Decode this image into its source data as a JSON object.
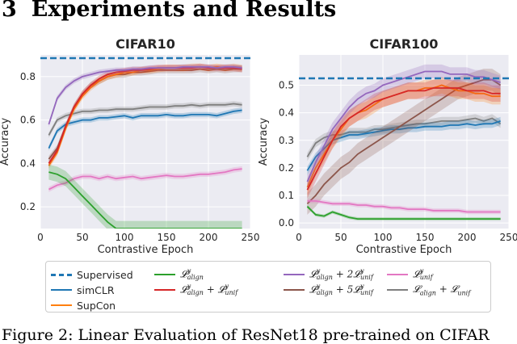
{
  "heading": {
    "number": "3",
    "title": "Experiments and Results"
  },
  "caption": "Figure 2: Linear Evaluation of ResNet18 pre-trained on CIFAR",
  "legend": [
    {
      "key": "supervised",
      "text": "Supervised",
      "color": "#1f77b4",
      "dashed": true,
      "math": false
    },
    {
      "key": "simclr",
      "text": "simCLR",
      "color": "#1f77b4",
      "math": false
    },
    {
      "key": "supcon",
      "text": "SupCon",
      "color": "#ff7f0e",
      "math": false
    },
    {
      "key": "align",
      "text": "𝓛",
      "sub": "align",
      "sup": "y",
      "color": "#2ca02c",
      "math": true
    },
    {
      "key": "align_unif",
      "text": "𝓛",
      "sub": "align",
      "sup": "y",
      "rest": " + 𝓛",
      "sub2": "unif",
      "sup2": "y",
      "color": "#d62728",
      "math": true
    },
    {
      "key": "align_2unif",
      "text": "𝓛",
      "sub": "align",
      "sup": "y",
      "rest": " + 2𝓛",
      "sub2": "unif",
      "sup2": "y",
      "color": "#9467bd",
      "math": true
    },
    {
      "key": "align_5unif",
      "text": "𝓛",
      "sub": "align",
      "sup": "y",
      "rest": " + 5𝓛",
      "sub2": "unif",
      "sup2": "y",
      "color": "#8c564b",
      "math": true
    },
    {
      "key": "unif",
      "text": "𝓛",
      "sub": "unif",
      "sup": "y",
      "color": "#e377c2",
      "math": true
    },
    {
      "key": "align_unif_ns",
      "text": "𝓛",
      "sub": "align",
      "rest": " + 𝓛",
      "sub2": "unif",
      "color": "#7f7f7f",
      "math": true
    }
  ],
  "chart_data": [
    {
      "type": "line",
      "title": "CIFAR10",
      "xlabel": "Contrastive Epoch",
      "ylabel": "Accuracy",
      "xlim": [
        0,
        250
      ],
      "ylim": [
        0.1,
        0.9
      ],
      "xticks": [
        0,
        50,
        100,
        150,
        200,
        250
      ],
      "yticks": [
        0.2,
        0.4,
        0.6,
        0.8
      ],
      "supervised": 0.885,
      "x": [
        10,
        20,
        30,
        40,
        50,
        60,
        70,
        80,
        90,
        100,
        110,
        120,
        130,
        140,
        150,
        160,
        170,
        180,
        190,
        200,
        210,
        220,
        230,
        240
      ],
      "series": [
        {
          "key": "simclr",
          "name": "simCLR",
          "band": 0.012,
          "values": [
            0.47,
            0.55,
            0.58,
            0.59,
            0.6,
            0.6,
            0.61,
            0.61,
            0.615,
            0.62,
            0.61,
            0.62,
            0.62,
            0.62,
            0.625,
            0.62,
            0.62,
            0.625,
            0.625,
            0.625,
            0.62,
            0.63,
            0.64,
            0.645
          ]
        },
        {
          "key": "align_unif_ns",
          "name": "L_align + L_unif",
          "band": 0.012,
          "values": [
            0.53,
            0.6,
            0.62,
            0.63,
            0.64,
            0.64,
            0.645,
            0.645,
            0.65,
            0.65,
            0.65,
            0.655,
            0.66,
            0.66,
            0.66,
            0.665,
            0.665,
            0.67,
            0.665,
            0.67,
            0.67,
            0.67,
            0.675,
            0.67
          ]
        },
        {
          "key": "align_5unif",
          "name": "L_align + 5 L_unif",
          "band": 0.015,
          "values": [
            0.42,
            0.47,
            0.57,
            0.66,
            0.72,
            0.76,
            0.78,
            0.8,
            0.81,
            0.81,
            0.82,
            0.82,
            0.825,
            0.83,
            0.83,
            0.83,
            0.83,
            0.83,
            0.835,
            0.83,
            0.835,
            0.83,
            0.835,
            0.835
          ]
        },
        {
          "key": "supcon",
          "name": "SupCon",
          "band": 0.015,
          "values": [
            0.39,
            0.45,
            0.56,
            0.65,
            0.71,
            0.75,
            0.78,
            0.8,
            0.81,
            0.82,
            0.82,
            0.83,
            0.83,
            0.835,
            0.84,
            0.84,
            0.84,
            0.845,
            0.845,
            0.84,
            0.845,
            0.84,
            0.845,
            0.84
          ]
        },
        {
          "key": "align_unif",
          "name": "L_align^y + L_unif^y",
          "band": 0.015,
          "values": [
            0.4,
            0.46,
            0.57,
            0.66,
            0.72,
            0.76,
            0.79,
            0.81,
            0.82,
            0.825,
            0.83,
            0.83,
            0.835,
            0.84,
            0.84,
            0.84,
            0.84,
            0.84,
            0.845,
            0.84,
            0.84,
            0.84,
            0.84,
            0.835
          ]
        },
        {
          "key": "align_2unif",
          "name": "L_align^y + 2 L_unif^y",
          "band": 0.012,
          "values": [
            0.58,
            0.7,
            0.75,
            0.78,
            0.8,
            0.81,
            0.82,
            0.825,
            0.83,
            0.83,
            0.835,
            0.835,
            0.84,
            0.84,
            0.84,
            0.84,
            0.845,
            0.845,
            0.845,
            0.845,
            0.84,
            0.845,
            0.845,
            0.84
          ]
        },
        {
          "key": "unif",
          "name": "L_unif^y",
          "band": 0.012,
          "values": [
            0.28,
            0.3,
            0.31,
            0.33,
            0.34,
            0.34,
            0.33,
            0.34,
            0.33,
            0.335,
            0.34,
            0.33,
            0.335,
            0.34,
            0.345,
            0.34,
            0.34,
            0.345,
            0.35,
            0.35,
            0.355,
            0.36,
            0.37,
            0.375
          ]
        },
        {
          "key": "align",
          "name": "L_align^y",
          "band": 0.035,
          "values": [
            0.36,
            0.35,
            0.33,
            0.29,
            0.25,
            0.21,
            0.17,
            0.13,
            0.1,
            0.1,
            0.1,
            0.1,
            0.1,
            0.1,
            0.1,
            0.1,
            0.1,
            0.1,
            0.1,
            0.1,
            0.1,
            0.1,
            0.1,
            0.1
          ]
        }
      ]
    },
    {
      "type": "line",
      "title": "CIFAR100",
      "xlabel": "Contrastive Epoch",
      "ylabel": "Accuracy",
      "xlim": [
        0,
        250
      ],
      "ylim": [
        -0.02,
        0.61
      ],
      "xticks": [
        0,
        50,
        100,
        150,
        200,
        250
      ],
      "yticks": [
        0.0,
        0.1,
        0.2,
        0.3,
        0.4,
        0.5
      ],
      "supervised": 0.525,
      "x": [
        10,
        20,
        30,
        40,
        50,
        60,
        70,
        80,
        90,
        100,
        110,
        120,
        130,
        140,
        150,
        160,
        170,
        180,
        190,
        200,
        210,
        220,
        230,
        240
      ],
      "series": [
        {
          "key": "align_unif_ns",
          "name": "L_align + L_unif",
          "band": 0.015,
          "values": [
            0.24,
            0.29,
            0.31,
            0.32,
            0.32,
            0.33,
            0.33,
            0.33,
            0.34,
            0.34,
            0.345,
            0.35,
            0.355,
            0.36,
            0.36,
            0.365,
            0.37,
            0.37,
            0.37,
            0.375,
            0.38,
            0.37,
            0.38,
            0.36
          ]
        },
        {
          "key": "simclr",
          "name": "simCLR",
          "band": 0.015,
          "values": [
            0.19,
            0.24,
            0.27,
            0.3,
            0.31,
            0.32,
            0.32,
            0.325,
            0.33,
            0.335,
            0.34,
            0.34,
            0.345,
            0.345,
            0.35,
            0.35,
            0.35,
            0.355,
            0.355,
            0.36,
            0.355,
            0.36,
            0.36,
            0.37
          ]
        },
        {
          "key": "align_5unif",
          "name": "L_align + 5 L_unif",
          "band": 0.04,
          "values": [
            0.07,
            0.1,
            0.14,
            0.17,
            0.2,
            0.22,
            0.25,
            0.27,
            0.29,
            0.31,
            0.33,
            0.35,
            0.37,
            0.39,
            0.41,
            0.43,
            0.45,
            0.47,
            0.49,
            0.5,
            0.51,
            0.52,
            0.52,
            0.5
          ]
        },
        {
          "key": "supcon",
          "name": "SupCon",
          "band": 0.03,
          "values": [
            0.13,
            0.2,
            0.25,
            0.3,
            0.34,
            0.38,
            0.4,
            0.41,
            0.43,
            0.45,
            0.46,
            0.47,
            0.48,
            0.48,
            0.49,
            0.49,
            0.5,
            0.49,
            0.48,
            0.48,
            0.47,
            0.47,
            0.46,
            0.46
          ]
        },
        {
          "key": "align_unif",
          "name": "L_align^y + L_unif^y",
          "band": 0.03,
          "values": [
            0.12,
            0.18,
            0.24,
            0.3,
            0.35,
            0.38,
            0.4,
            0.42,
            0.44,
            0.45,
            0.46,
            0.47,
            0.48,
            0.48,
            0.48,
            0.49,
            0.49,
            0.49,
            0.49,
            0.48,
            0.48,
            0.48,
            0.47,
            0.47
          ]
        },
        {
          "key": "align_2unif",
          "name": "L_align^y + 2 L_unif^y",
          "band": 0.025,
          "values": [
            0.15,
            0.22,
            0.28,
            0.34,
            0.38,
            0.42,
            0.45,
            0.47,
            0.48,
            0.5,
            0.51,
            0.52,
            0.53,
            0.54,
            0.55,
            0.55,
            0.55,
            0.54,
            0.54,
            0.54,
            0.53,
            0.53,
            0.52,
            0.51
          ]
        },
        {
          "key": "unif",
          "name": "L_unif^y",
          "band": 0.008,
          "values": [
            0.08,
            0.08,
            0.075,
            0.07,
            0.07,
            0.07,
            0.065,
            0.065,
            0.06,
            0.06,
            0.055,
            0.055,
            0.05,
            0.05,
            0.05,
            0.045,
            0.045,
            0.045,
            0.045,
            0.04,
            0.04,
            0.04,
            0.04,
            0.04
          ]
        },
        {
          "key": "align",
          "name": "L_align^y",
          "band": 0.006,
          "values": [
            0.06,
            0.03,
            0.025,
            0.04,
            0.03,
            0.02,
            0.015,
            0.015,
            0.015,
            0.015,
            0.015,
            0.015,
            0.015,
            0.015,
            0.015,
            0.015,
            0.015,
            0.015,
            0.015,
            0.015,
            0.015,
            0.015,
            0.015,
            0.015
          ]
        }
      ]
    }
  ]
}
